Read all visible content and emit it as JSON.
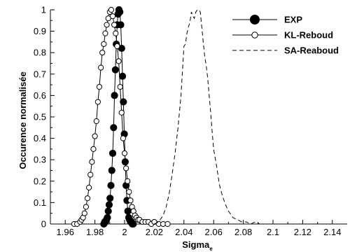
{
  "chart_data": {
    "type": "line",
    "xlabel": "Sigma",
    "xlabel_subscript": "e",
    "ylabel": "Occurence normalisée",
    "xlim": [
      1.95,
      2.15
    ],
    "ylim": [
      0,
      1
    ],
    "xticks": [
      "1.96",
      "1.98",
      "2",
      "2.02",
      "2.04",
      "2.06",
      "2.08",
      "2.1",
      "2.12",
      "2.14"
    ],
    "yticks": [
      "0",
      "0.1",
      "0.2",
      "0.3",
      "0.4",
      "0.5",
      "0.6",
      "0.7",
      "0.8",
      "0.9",
      "1"
    ],
    "grid": false,
    "legend_position": "top-right",
    "series": [
      {
        "name": "EXP",
        "style": "solid-filled-circle",
        "x": [
          1.986,
          1.9866,
          1.9872,
          1.9878,
          1.9884,
          1.989,
          1.9896,
          1.9902,
          1.9908,
          1.9914,
          1.992,
          1.9926,
          1.9932,
          1.9938,
          1.9944,
          1.995,
          1.9956,
          1.9962,
          1.9968,
          1.9974,
          1.998,
          1.9986,
          1.9992,
          1.9998,
          2.0004,
          2.001,
          2.0016,
          2.0022,
          2.0028,
          2.0034,
          2.004,
          2.0046,
          2.0052,
          2.0058
        ],
        "y": [
          0.0,
          0.01,
          0.01,
          0.02,
          0.03,
          0.06,
          0.09,
          0.12,
          0.18,
          0.25,
          0.33,
          0.45,
          0.6,
          0.72,
          0.84,
          0.93,
          0.98,
          1.0,
          0.99,
          0.93,
          0.82,
          0.69,
          0.57,
          0.42,
          0.29,
          0.18,
          0.11,
          0.06,
          0.03,
          0.02,
          0.01,
          0.01,
          0.0,
          0.0
        ]
      },
      {
        "name": "KL-Reboud",
        "style": "solid-open-circle",
        "x": [
          1.966,
          1.968,
          1.97,
          1.971,
          1.972,
          1.973,
          1.974,
          1.975,
          1.976,
          1.977,
          1.978,
          1.979,
          1.98,
          1.981,
          1.982,
          1.983,
          1.984,
          1.985,
          1.986,
          1.987,
          1.988,
          1.989,
          1.99,
          1.991,
          1.992,
          1.993,
          1.994,
          1.995,
          1.996,
          1.997,
          1.998,
          1.999,
          2.0,
          2.001,
          2.002,
          2.003,
          2.004,
          2.005,
          2.006,
          2.007,
          2.008,
          2.009,
          2.01,
          2.012,
          2.014,
          2.016,
          2.018,
          2.02,
          2.023,
          2.026,
          2.029
        ],
        "y": [
          0.0,
          0.0,
          0.01,
          0.02,
          0.03,
          0.05,
          0.08,
          0.12,
          0.17,
          0.23,
          0.29,
          0.35,
          0.41,
          0.48,
          0.57,
          0.64,
          0.73,
          0.8,
          0.84,
          0.89,
          0.93,
          0.96,
          0.99,
          1.0,
          0.97,
          0.93,
          0.89,
          0.83,
          0.76,
          0.64,
          0.52,
          0.4,
          0.33,
          0.26,
          0.2,
          0.15,
          0.11,
          0.08,
          0.06,
          0.04,
          0.03,
          0.02,
          0.02,
          0.01,
          0.01,
          0.01,
          0.0,
          0.01,
          0.0,
          0.0,
          0.0
        ]
      },
      {
        "name": "SA-Reaboud",
        "style": "dashed",
        "x": [
          2.02,
          2.023,
          2.026,
          2.028,
          2.03,
          2.032,
          2.034,
          2.036,
          2.038,
          2.04,
          2.041,
          2.042,
          2.043,
          2.044,
          2.045,
          2.046,
          2.047,
          2.048,
          2.049,
          2.05,
          2.051,
          2.052,
          2.053,
          2.054,
          2.055,
          2.056,
          2.057,
          2.058,
          2.059,
          2.06,
          2.062,
          2.064,
          2.066,
          2.068,
          2.07,
          2.073,
          2.076,
          2.079,
          2.082,
          2.085,
          2.088,
          2.091,
          2.094
        ],
        "y": [
          0.0,
          0.01,
          0.04,
          0.08,
          0.14,
          0.23,
          0.33,
          0.45,
          0.6,
          0.83,
          0.84,
          0.89,
          0.92,
          0.94,
          0.99,
          0.97,
          0.96,
          0.99,
          1.0,
          1.0,
          0.99,
          0.92,
          0.85,
          0.78,
          0.74,
          0.68,
          0.6,
          0.52,
          0.43,
          0.35,
          0.27,
          0.18,
          0.13,
          0.09,
          0.06,
          0.03,
          0.02,
          0.01,
          0.01,
          0.0,
          0.01,
          0.0,
          0.0
        ]
      }
    ]
  }
}
